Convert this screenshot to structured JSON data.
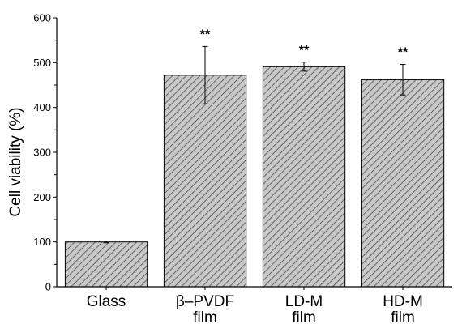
{
  "chart_data": {
    "type": "bar",
    "title": "",
    "xlabel": "",
    "ylabel": "Cell viability (%)",
    "ylim": [
      0,
      600
    ],
    "yticks": [
      "0",
      "100",
      "200",
      "300",
      "400",
      "500",
      "600"
    ],
    "categories": [
      [
        "Glass"
      ],
      [
        "β–PVDF",
        "film"
      ],
      [
        "LD-M",
        "film"
      ],
      [
        "HD-M",
        "film"
      ]
    ],
    "values": [
      100,
      472,
      491,
      462
    ],
    "error_low": [
      98,
      408,
      481,
      428
    ],
    "error_high": [
      102,
      536,
      501,
      496
    ],
    "significance": [
      "",
      "**",
      "**",
      "**"
    ],
    "bar_pattern": "diagonal-hatch",
    "colors": {
      "bar_fill": "#c8c8c8",
      "hatch": "#4a4a4a",
      "bar_edge": "#000000",
      "axis": "#000000"
    },
    "grid": false,
    "legend": "none"
  }
}
